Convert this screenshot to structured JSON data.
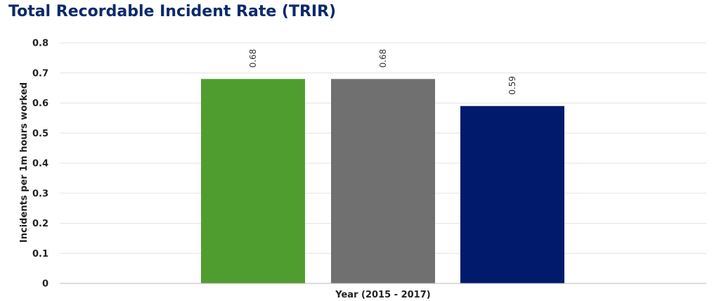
{
  "chart_data": {
    "type": "bar",
    "title": "Total Recordable Incident Rate (TRIR)",
    "xlabel": "Year (2015 - 2017)",
    "ylabel": "Incidents per 1m hours worked",
    "categories": [
      "",
      "",
      ""
    ],
    "values": [
      0.68,
      0.68,
      0.59
    ],
    "data_labels": [
      "0.68",
      "0.68",
      "0.59"
    ],
    "colors": [
      "#4f9d2f",
      "#707070",
      "#011a6b"
    ],
    "ylim": [
      0,
      0.8
    ],
    "yticks": [
      0,
      0.1,
      0.2,
      0.3,
      0.4,
      0.5,
      0.6,
      0.7,
      0.8
    ],
    "ytick_labels": [
      "0",
      "0.1",
      "0.2",
      "0.3",
      "0.4",
      "0.5",
      "0.6",
      "0.7",
      "0.8"
    ],
    "grid": true,
    "legend": "none"
  }
}
